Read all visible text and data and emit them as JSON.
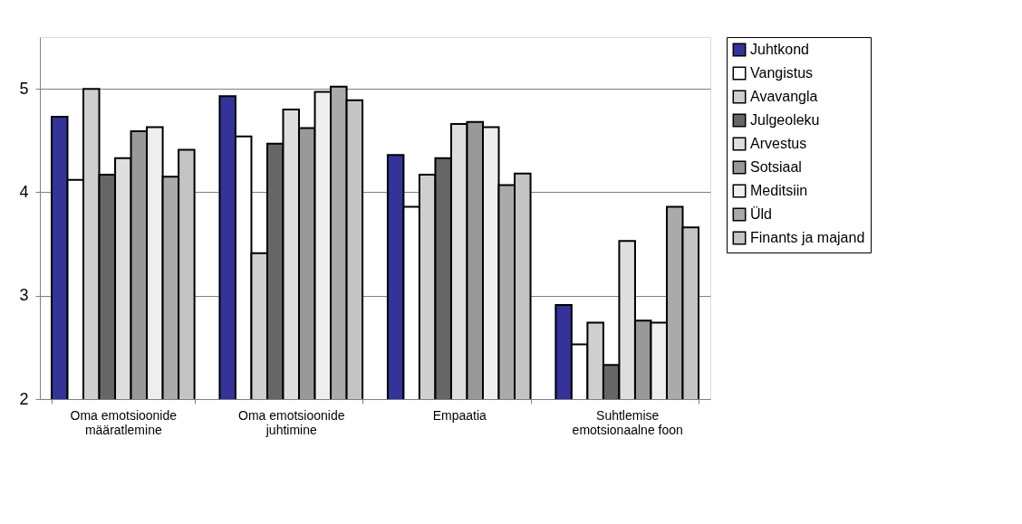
{
  "chart_data": {
    "type": "bar",
    "categories": [
      "Oma emotsioonide määratlemine",
      "Oma emotsioonide juhtimine",
      "Empaatia",
      "Suhtlemise emotsionaalne foon"
    ],
    "series": [
      {
        "name": "Juhtkond",
        "color": "#333399",
        "values": [
          4.73,
          4.93,
          4.36,
          2.91
        ]
      },
      {
        "name": "Vangistus",
        "color": "#ffffff",
        "values": [
          4.12,
          4.54,
          3.86,
          2.53
        ]
      },
      {
        "name": "Avavangla",
        "color": "#cfcfcf",
        "values": [
          5.0,
          3.41,
          4.17,
          2.74
        ]
      },
      {
        "name": "Julgeoleku",
        "color": "#666666",
        "values": [
          4.17,
          4.47,
          4.33,
          2.33
        ]
      },
      {
        "name": "Arvestus",
        "color": "#dedede",
        "values": [
          4.33,
          4.8,
          4.66,
          3.53
        ]
      },
      {
        "name": "Sotsiaal",
        "color": "#999999",
        "values": [
          4.59,
          4.62,
          4.68,
          2.76
        ]
      },
      {
        "name": "Meditsiin",
        "color": "#eeeeee",
        "values": [
          4.63,
          4.97,
          4.63,
          2.74
        ]
      },
      {
        "name": "Üld",
        "color": "#aaaaaa",
        "values": [
          4.15,
          5.02,
          4.07,
          3.86
        ]
      },
      {
        "name": "Finants ja majand",
        "color": "#c4c4c4",
        "values": [
          4.41,
          4.89,
          4.18,
          3.66
        ]
      }
    ],
    "ylim": [
      2,
      5.5
    ],
    "yticks": [
      2,
      3,
      4,
      5
    ],
    "grid": "y",
    "legend": "right"
  }
}
